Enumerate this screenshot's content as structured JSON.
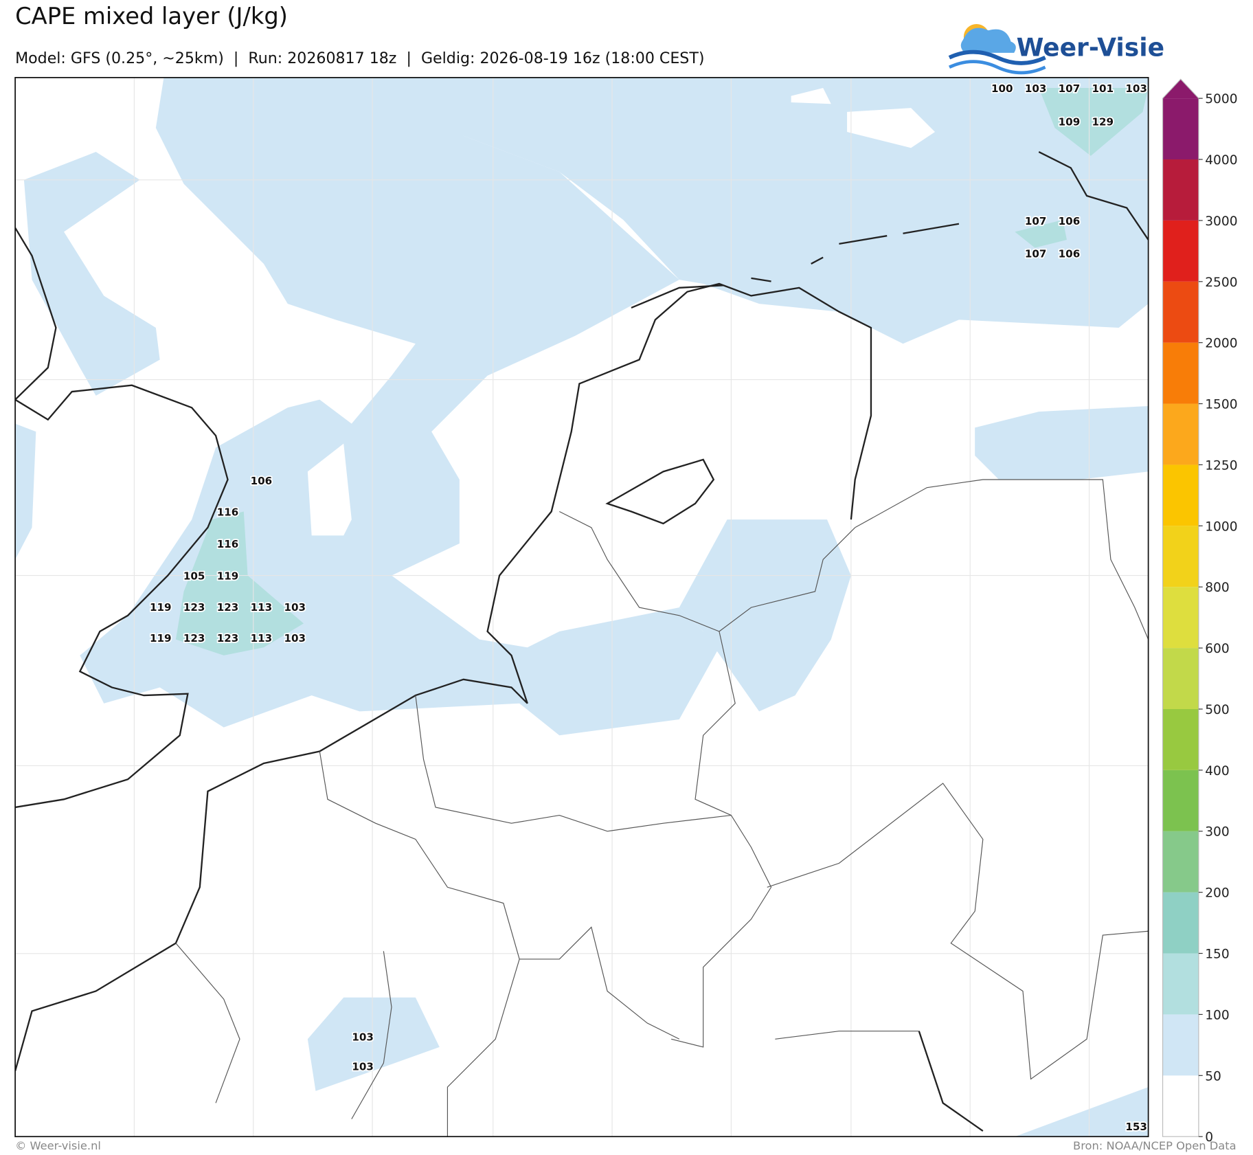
{
  "header": {
    "title": "CAPE mixed layer (J/kg)",
    "subtitle": "Model: GFS (0.25°, ~25km)  |  Run: 20260817 18z  |  Geldig: 2026-08-19 16z (18:00 CEST)",
    "logo": "Weer-Visie"
  },
  "map": {
    "labels": [
      100,
      103,
      107,
      101,
      103,
      109,
      129,
      107,
      106,
      107,
      106,
      106,
      116,
      116,
      105,
      119,
      119,
      123,
      123,
      113,
      103,
      119,
      123,
      123,
      113,
      103,
      103,
      103,
      153
    ]
  },
  "colorbar": {
    "ticks": [
      0,
      50,
      100,
      150,
      200,
      300,
      400,
      500,
      600,
      800,
      1000,
      1250,
      1500,
      2000,
      2500,
      3000,
      4000,
      5000
    ],
    "colors": [
      "#ffffff",
      "#d0e6f5",
      "#b2dfdf",
      "#8fd0c4",
      "#86c98a",
      "#7cc24f",
      "#98c940",
      "#c2d94a",
      "#dede3e",
      "#f2d21a",
      "#fbc500",
      "#fca81c",
      "#f87d08",
      "#ec4b12",
      "#e0201c",
      "#b71c3b",
      "#8b1a6b"
    ]
  },
  "footer": {
    "left": "© Weer-visie.nl",
    "right": "Bron: NOAA/NCEP Open Data"
  }
}
